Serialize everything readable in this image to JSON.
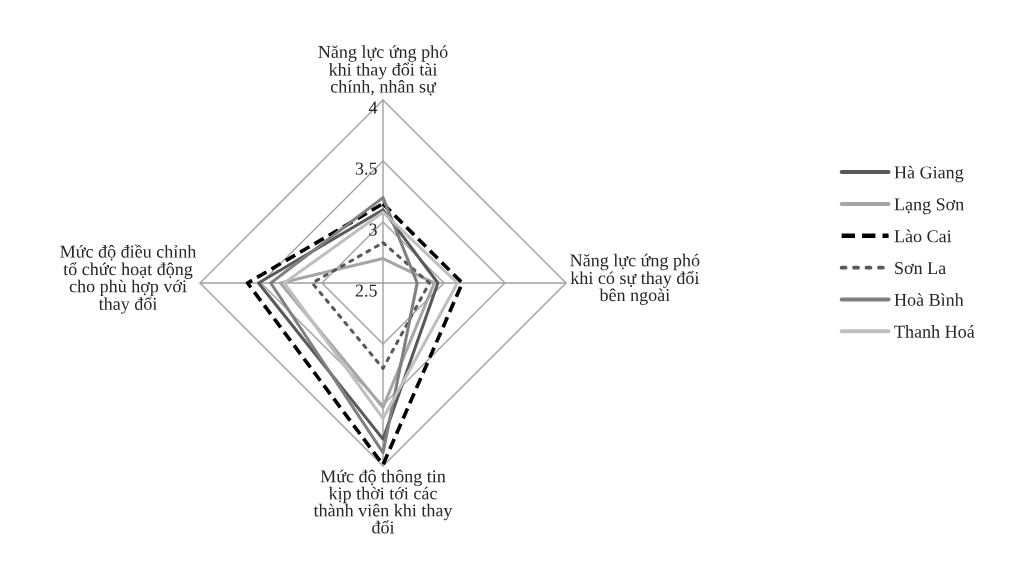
{
  "chart_data": {
    "type": "radar",
    "categories": [
      "Năng lực ứng phó khi thay đổi tài chính, nhân sự",
      "Năng lực ứng phó khi có sự thay đổi bên ngoài",
      "Mức độ thông tin kịp thời tới các thành viên khi thay đổi",
      "Mức độ điều chỉnh tổ chức hoạt động cho phù hợp với thay đổi"
    ],
    "ylim": [
      2.5,
      4
    ],
    "yticks": [
      2.5,
      3,
      3.5,
      4
    ],
    "legend": "right",
    "series": [
      {
        "name": "Hà Giang",
        "color": "#595959",
        "line_style": "solid",
        "values": [
          3.1,
          2.95,
          3.78,
          3.52
        ]
      },
      {
        "name": "Lạng Sơn",
        "color": "#a6a6a6",
        "line_style": "solid",
        "values": [
          2.7,
          2.92,
          3.52,
          3.34
        ]
      },
      {
        "name": "Lào Cai",
        "color": "#000000",
        "line_style": "dashed",
        "values": [
          3.15,
          3.15,
          3.99,
          3.61
        ]
      },
      {
        "name": "Sơn La",
        "color": "#595959",
        "line_style": "dotted",
        "values": [
          2.83,
          2.88,
          3.2,
          3.08
        ]
      },
      {
        "name": "Hoà Bình",
        "color": "#808080",
        "line_style": "solid",
        "values": [
          3.2,
          2.78,
          3.89,
          3.42
        ]
      },
      {
        "name": "Thanh Hoá",
        "color": "#bfbfbf",
        "line_style": "solid",
        "values": [
          3.08,
          3.11,
          3.61,
          3.31
        ]
      }
    ]
  }
}
